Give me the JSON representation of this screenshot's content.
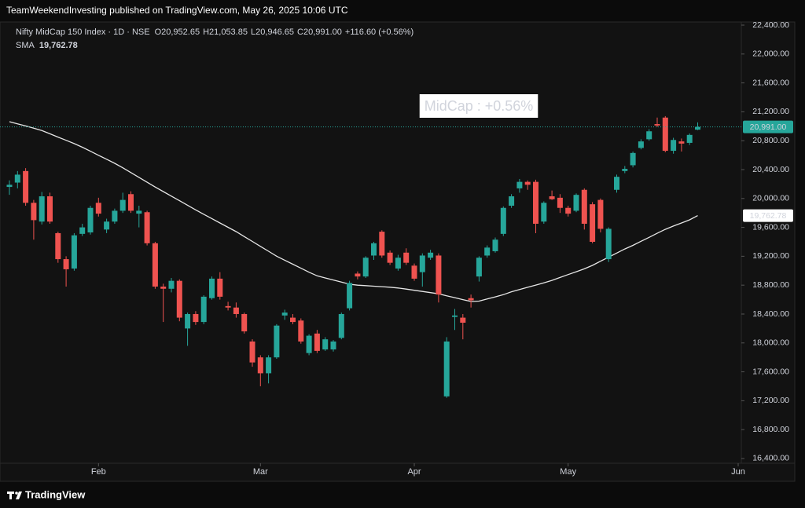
{
  "header": "TeamWeekendInvesting published on TradingView.com, May 26, 2025 10:06 UTC",
  "footer": "TradingView",
  "chart_data": {
    "type": "candlestick",
    "title": "Nifty MidCap 150 Index · 1D · NSE",
    "legend": [
      {
        "key": "O",
        "value": "20,952.65"
      },
      {
        "key": "H",
        "value": "21,053.85"
      },
      {
        "key": "L",
        "value": "20,946.65"
      },
      {
        "key": "C",
        "value": "20,991.00"
      }
    ],
    "change": "+116.60 (+0.56%)",
    "annotation": "MidCap : +0.56%",
    "up_color": "#26a69a",
    "down_color": "#ef5350",
    "categories": [
      null,
      null,
      null,
      null,
      null,
      null,
      null,
      null,
      null,
      null,
      null,
      "Feb",
      null,
      null,
      null,
      null,
      null,
      null,
      null,
      null,
      null,
      null,
      null,
      null,
      null,
      null,
      null,
      null,
      null,
      null,
      null,
      "Mar",
      null,
      null,
      null,
      null,
      null,
      null,
      null,
      null,
      null,
      null,
      null,
      null,
      null,
      null,
      null,
      null,
      null,
      null,
      "Apr",
      null,
      null,
      null,
      null,
      null,
      null,
      null,
      null,
      null,
      null,
      null,
      null,
      null,
      null,
      null,
      null,
      null,
      null,
      "May",
      null,
      null,
      null,
      null,
      null,
      null,
      null,
      null,
      null,
      null,
      null,
      null,
      null,
      null,
      null,
      null,
      null,
      null,
      null,
      null,
      "Jun"
    ],
    "open": [
      20160,
      20220,
      20380,
      19940,
      19680,
      20030,
      19520,
      19160,
      19030,
      19510,
      19530,
      19940,
      19570,
      19680,
      19830,
      20060,
      19790,
      19810,
      19380,
      18780,
      18750,
      18860,
      18200,
      18400,
      18290,
      18620,
      18890,
      18510,
      18490,
      18400,
      18020,
      17800,
      17580,
      17800,
      18380,
      18350,
      18310,
      17860,
      18130,
      17910,
      17910,
      18070,
      18480,
      18960,
      18920,
      19210,
      19540,
      19250,
      19030,
      19250,
      19070,
      18980,
      19180,
      19210,
      17260,
      18360,
      18350,
      18620,
      18920,
      19210,
      19270,
      19510,
      19900,
      20140,
      20230,
      20230,
      19680,
      20030,
      20010,
      19870,
      19830,
      20120,
      19920,
      19980,
      19160,
      20120,
      20380,
      20460,
      20700,
      20820,
      21030,
      21120,
      20660,
      20790,
      20770,
      20952.65,
      null,
      null,
      null,
      null,
      null
    ],
    "high": [
      20250,
      20380,
      20420,
      19980,
      20090,
      20080,
      19540,
      19200,
      19520,
      19650,
      19900,
      20010,
      19720,
      19860,
      20080,
      20100,
      19900,
      19830,
      19400,
      18820,
      18900,
      18880,
      18420,
      18440,
      18660,
      18920,
      18980,
      18570,
      18560,
      18420,
      18050,
      17830,
      17830,
      18260,
      18460,
      18400,
      18340,
      18120,
      18180,
      18080,
      18040,
      18420,
      18860,
      18990,
      19200,
      19400,
      19560,
      19280,
      19220,
      19310,
      19100,
      19240,
      19290,
      19240,
      18080,
      18470,
      18400,
      18670,
      19200,
      19350,
      19460,
      19890,
      20060,
      20270,
      20250,
      20260,
      19960,
      20110,
      20060,
      19900,
      20070,
      20140,
      19950,
      20000,
      19600,
      20330,
      20450,
      20650,
      20820,
      20960,
      21120,
      21140,
      20840,
      20830,
      20900,
      21053.85,
      null,
      null,
      null,
      null,
      null
    ],
    "low": [
      20050,
      20140,
      19900,
      19430,
      19640,
      19650,
      19110,
      18780,
      19000,
      19480,
      19500,
      19750,
      19520,
      19650,
      19800,
      19800,
      19600,
      19350,
      18750,
      18290,
      18700,
      18300,
      17960,
      18250,
      18260,
      18600,
      18600,
      18450,
      18350,
      18130,
      17670,
      17400,
      17440,
      17780,
      18320,
      18260,
      17990,
      17830,
      17860,
      17890,
      17880,
      18050,
      18450,
      18880,
      18900,
      19150,
      19180,
      19080,
      19000,
      19080,
      18860,
      18780,
      19150,
      18560,
      17240,
      18180,
      18050,
      18490,
      18850,
      19180,
      19250,
      19480,
      19870,
      20080,
      20120,
      19520,
      19650,
      19980,
      19800,
      19750,
      19810,
      19570,
      19380,
      19530,
      19120,
      20080,
      20350,
      20430,
      20680,
      20800,
      20990,
      20640,
      20620,
      20650,
      20740,
      20946.65,
      null,
      null,
      null,
      null,
      null
    ],
    "close": [
      20190,
      20330,
      19940,
      19700,
      20030,
      19680,
      19160,
      19020,
      19490,
      19600,
      19870,
      19790,
      19680,
      19830,
      19980,
      19830,
      19830,
      19380,
      18780,
      18750,
      18860,
      18350,
      18400,
      18290,
      18640,
      18890,
      18640,
      18490,
      18400,
      18160,
      17730,
      17580,
      17800,
      18240,
      18420,
      18290,
      18020,
      18100,
      17890,
      18050,
      18020,
      18400,
      18830,
      18920,
      19180,
      19380,
      19210,
      19110,
      19180,
      19110,
      18890,
      19210,
      19250,
      18670,
      18020,
      18380,
      18280,
      18590,
      19180,
      19320,
      19430,
      19870,
      20030,
      20230,
      20190,
      19650,
      19940,
      19990,
      19870,
      19790,
      20050,
      19650,
      19400,
      19580,
      19580,
      20300,
      20410,
      20630,
      20790,
      20930,
      21010,
      20660,
      20810,
      20760,
      20880,
      20991,
      null,
      null,
      null,
      null,
      null
    ],
    "series": [
      {
        "name": "SMA",
        "color": "#e6e6e6",
        "value_label": "19,762.78",
        "values": [
          21063,
          21033,
          21004,
          20974,
          20940,
          20895,
          20850,
          20805,
          20760,
          20710,
          20654,
          20598,
          20543,
          20487,
          20425,
          20358,
          20292,
          20225,
          20159,
          20096,
          20032,
          19969,
          19906,
          19842,
          19781,
          19721,
          19661,
          19601,
          19541,
          19473,
          19405,
          19337,
          19269,
          19201,
          19145,
          19090,
          19034,
          18979,
          18929,
          18900,
          18871,
          18842,
          18813,
          18800,
          18793,
          18786,
          18779,
          18772,
          18761,
          18745,
          18729,
          18713,
          18697,
          18680,
          18653,
          18627,
          18600,
          18574,
          18579,
          18609,
          18638,
          18668,
          18708,
          18739,
          18770,
          18801,
          18832,
          18866,
          18906,
          18946,
          18986,
          19026,
          19074,
          19131,
          19188,
          19244,
          19301,
          19351,
          19407,
          19462,
          19518,
          19573,
          19618,
          19661,
          19704,
          19762.78,
          null,
          null,
          null,
          null,
          null
        ]
      }
    ],
    "ylim": [
      16330,
      22550
    ],
    "yticks": [
      {
        "value": 16400,
        "label": "16,400.00"
      },
      {
        "value": 16800,
        "label": "16,800.00"
      },
      {
        "value": 17200,
        "label": "17,200.00"
      },
      {
        "value": 17600,
        "label": "17,600.00"
      },
      {
        "value": 18000,
        "label": "18,000.00"
      },
      {
        "value": 18400,
        "label": "18,400.00"
      },
      {
        "value": 18800,
        "label": "18,800.00"
      },
      {
        "value": 19200,
        "label": "19,200.00"
      },
      {
        "value": 19600,
        "label": "19,600.00"
      },
      {
        "value": 20000,
        "label": "20,000.00"
      },
      {
        "value": 20400,
        "label": "20,400.00"
      },
      {
        "value": 20800,
        "label": "20,800.00"
      },
      {
        "value": 21200,
        "label": "21,200.00"
      },
      {
        "value": 21600,
        "label": "21,600.00"
      },
      {
        "value": 22000,
        "label": "22,000.00"
      },
      {
        "value": 22400,
        "label": "22,400.00"
      }
    ],
    "grid": false
  }
}
